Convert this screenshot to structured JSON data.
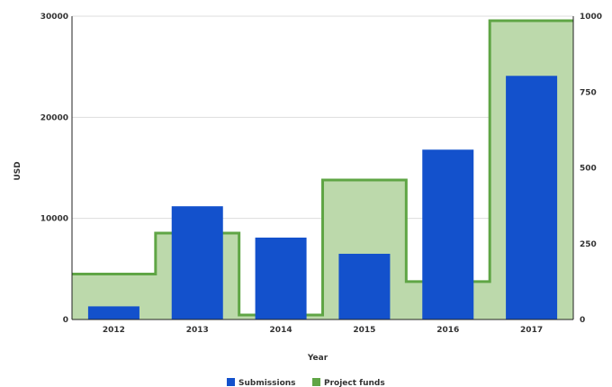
{
  "chart_data": {
    "type": "bar",
    "categories": [
      "2012",
      "2013",
      "2014",
      "2015",
      "2016",
      "2017"
    ],
    "xlabel": "Year",
    "ylabel": "USD",
    "ylim": [
      0,
      30000
    ],
    "y2lim": [
      0,
      1000
    ],
    "y_ticks": [
      "0",
      "10000",
      "20000",
      "30000"
    ],
    "y2_ticks": [
      "0",
      "250",
      "500",
      "750",
      "1000"
    ],
    "grid": true,
    "legend_position": "bottom",
    "series": [
      {
        "name": "Submissions",
        "type": "bar",
        "axis": "left",
        "color": "#1351cc",
        "values": [
          1300,
          11200,
          8100,
          6500,
          16800,
          24100
        ]
      },
      {
        "name": "Project funds",
        "type": "step-area",
        "axis": "right",
        "color": "#5fa545",
        "fill": "#bcd9ab",
        "values": [
          150,
          285,
          15,
          460,
          125,
          985
        ]
      }
    ]
  }
}
